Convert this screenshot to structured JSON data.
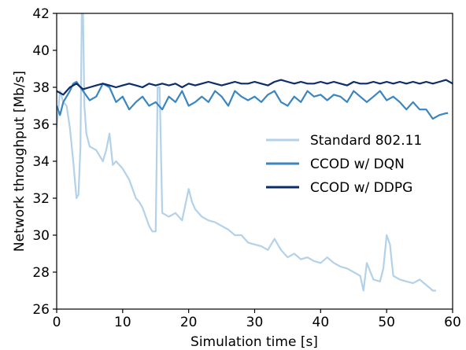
{
  "chart_data": {
    "type": "line",
    "title": "",
    "xlabel": "Simulation time [s]",
    "ylabel": "Network throughput [Mb/s]",
    "xlim": [
      0,
      60
    ],
    "ylim": [
      26,
      42
    ],
    "xticks": [
      "0",
      "10",
      "20",
      "30",
      "40",
      "50",
      "60"
    ],
    "yticks": [
      "26",
      "28",
      "30",
      "32",
      "34",
      "36",
      "38",
      "40",
      "42"
    ],
    "grid": false,
    "legend_placement": "center-right",
    "series": [
      {
        "name": "Standard 802.11",
        "color": "#b3d2e9",
        "points": [
          [
            0,
            35.8
          ],
          [
            0.5,
            37.8
          ],
          [
            1,
            37.2
          ],
          [
            1.5,
            37.0
          ],
          [
            2,
            35.8
          ],
          [
            2.5,
            34.0
          ],
          [
            3,
            32.0
          ],
          [
            3.3,
            32.2
          ],
          [
            3.6,
            34.8
          ],
          [
            3.8,
            42.0
          ],
          [
            4.0,
            42.0
          ],
          [
            4.2,
            37.0
          ],
          [
            4.5,
            35.5
          ],
          [
            5,
            34.8
          ],
          [
            6,
            34.6
          ],
          [
            7,
            34.0
          ],
          [
            7.5,
            34.6
          ],
          [
            8,
            35.5
          ],
          [
            8.5,
            33.8
          ],
          [
            9,
            34.0
          ],
          [
            10,
            33.6
          ],
          [
            11,
            33.0
          ],
          [
            12,
            32.0
          ],
          [
            12.5,
            31.8
          ],
          [
            13,
            31.5
          ],
          [
            13.5,
            31.0
          ],
          [
            14,
            30.5
          ],
          [
            14.5,
            30.2
          ],
          [
            15,
            30.2
          ],
          [
            15.3,
            38.0
          ],
          [
            15.6,
            38.0
          ],
          [
            16,
            31.2
          ],
          [
            17,
            31.0
          ],
          [
            18,
            31.2
          ],
          [
            19,
            30.8
          ],
          [
            20,
            32.5
          ],
          [
            20.5,
            31.8
          ],
          [
            21,
            31.4
          ],
          [
            22,
            31.0
          ],
          [
            23,
            30.8
          ],
          [
            24,
            30.7
          ],
          [
            25,
            30.5
          ],
          [
            26,
            30.3
          ],
          [
            27,
            30.0
          ],
          [
            28,
            30.0
          ],
          [
            29,
            29.6
          ],
          [
            30,
            29.5
          ],
          [
            31,
            29.4
          ],
          [
            32,
            29.2
          ],
          [
            33,
            29.8
          ],
          [
            34,
            29.2
          ],
          [
            35,
            28.8
          ],
          [
            36,
            29.0
          ],
          [
            37,
            28.7
          ],
          [
            38,
            28.8
          ],
          [
            39,
            28.6
          ],
          [
            40,
            28.5
          ],
          [
            41,
            28.8
          ],
          [
            42,
            28.5
          ],
          [
            43,
            28.3
          ],
          [
            44,
            28.2
          ],
          [
            45,
            28.0
          ],
          [
            46,
            27.8
          ],
          [
            46.5,
            27.0
          ],
          [
            47,
            28.5
          ],
          [
            48,
            27.6
          ],
          [
            49,
            27.5
          ],
          [
            49.5,
            28.2
          ],
          [
            50,
            30.0
          ],
          [
            50.5,
            29.5
          ],
          [
            51,
            27.8
          ],
          [
            52,
            27.6
          ],
          [
            53,
            27.5
          ],
          [
            54,
            27.4
          ],
          [
            55,
            27.6
          ],
          [
            56,
            27.3
          ],
          [
            57,
            27.0
          ],
          [
            57.5,
            27.0
          ]
        ]
      },
      {
        "name": "CCOD w/ DQN",
        "color": "#3a86c2",
        "points": [
          [
            0,
            37.0
          ],
          [
            0.5,
            36.5
          ],
          [
            1,
            37.2
          ],
          [
            2,
            37.8
          ],
          [
            2.5,
            38.2
          ],
          [
            3,
            38.3
          ],
          [
            4,
            37.8
          ],
          [
            5,
            37.3
          ],
          [
            6,
            37.5
          ],
          [
            7,
            38.2
          ],
          [
            8,
            38.0
          ],
          [
            9,
            37.2
          ],
          [
            10,
            37.5
          ],
          [
            11,
            36.8
          ],
          [
            12,
            37.2
          ],
          [
            13,
            37.5
          ],
          [
            14,
            37.0
          ],
          [
            15,
            37.2
          ],
          [
            16,
            36.8
          ],
          [
            17,
            37.5
          ],
          [
            18,
            37.2
          ],
          [
            19,
            37.8
          ],
          [
            20,
            37.0
          ],
          [
            21,
            37.2
          ],
          [
            22,
            37.5
          ],
          [
            23,
            37.2
          ],
          [
            24,
            37.8
          ],
          [
            25,
            37.5
          ],
          [
            26,
            37.0
          ],
          [
            27,
            37.8
          ],
          [
            28,
            37.5
          ],
          [
            29,
            37.3
          ],
          [
            30,
            37.5
          ],
          [
            31,
            37.2
          ],
          [
            32,
            37.6
          ],
          [
            33,
            37.8
          ],
          [
            34,
            37.2
          ],
          [
            35,
            37.0
          ],
          [
            36,
            37.5
          ],
          [
            37,
            37.2
          ],
          [
            38,
            37.8
          ],
          [
            39,
            37.5
          ],
          [
            40,
            37.6
          ],
          [
            41,
            37.3
          ],
          [
            42,
            37.6
          ],
          [
            43,
            37.5
          ],
          [
            44,
            37.2
          ],
          [
            45,
            37.8
          ],
          [
            46,
            37.5
          ],
          [
            47,
            37.2
          ],
          [
            48,
            37.5
          ],
          [
            49,
            37.8
          ],
          [
            50,
            37.3
          ],
          [
            51,
            37.5
          ],
          [
            52,
            37.2
          ],
          [
            53,
            36.8
          ],
          [
            54,
            37.2
          ],
          [
            55,
            36.8
          ],
          [
            56,
            36.8
          ],
          [
            57,
            36.3
          ],
          [
            58,
            36.5
          ],
          [
            59,
            36.6
          ],
          [
            59.3,
            36.6
          ]
        ]
      },
      {
        "name": "CCOD w/ DDPG",
        "color": "#0c2c6c",
        "points": [
          [
            0,
            37.8
          ],
          [
            1,
            37.6
          ],
          [
            2,
            38.0
          ],
          [
            3,
            38.2
          ],
          [
            4,
            37.9
          ],
          [
            5,
            38.0
          ],
          [
            6,
            38.1
          ],
          [
            7,
            38.2
          ],
          [
            8,
            38.1
          ],
          [
            9,
            38.0
          ],
          [
            10,
            38.1
          ],
          [
            11,
            38.2
          ],
          [
            12,
            38.1
          ],
          [
            13,
            38.0
          ],
          [
            14,
            38.2
          ],
          [
            15,
            38.1
          ],
          [
            16,
            38.2
          ],
          [
            17,
            38.1
          ],
          [
            18,
            38.2
          ],
          [
            19,
            38.0
          ],
          [
            20,
            38.2
          ],
          [
            21,
            38.1
          ],
          [
            22,
            38.2
          ],
          [
            23,
            38.3
          ],
          [
            24,
            38.2
          ],
          [
            25,
            38.1
          ],
          [
            26,
            38.2
          ],
          [
            27,
            38.3
          ],
          [
            28,
            38.2
          ],
          [
            29,
            38.2
          ],
          [
            30,
            38.3
          ],
          [
            31,
            38.2
          ],
          [
            32,
            38.1
          ],
          [
            33,
            38.3
          ],
          [
            34,
            38.4
          ],
          [
            35,
            38.3
          ],
          [
            36,
            38.2
          ],
          [
            37,
            38.3
          ],
          [
            38,
            38.2
          ],
          [
            39,
            38.2
          ],
          [
            40,
            38.3
          ],
          [
            41,
            38.2
          ],
          [
            42,
            38.3
          ],
          [
            43,
            38.2
          ],
          [
            44,
            38.1
          ],
          [
            45,
            38.3
          ],
          [
            46,
            38.2
          ],
          [
            47,
            38.2
          ],
          [
            48,
            38.3
          ],
          [
            49,
            38.2
          ],
          [
            50,
            38.3
          ],
          [
            51,
            38.2
          ],
          [
            52,
            38.3
          ],
          [
            53,
            38.2
          ],
          [
            54,
            38.3
          ],
          [
            55,
            38.2
          ],
          [
            56,
            38.3
          ],
          [
            57,
            38.2
          ],
          [
            58,
            38.3
          ],
          [
            59,
            38.4
          ],
          [
            60,
            38.2
          ]
        ]
      }
    ]
  }
}
